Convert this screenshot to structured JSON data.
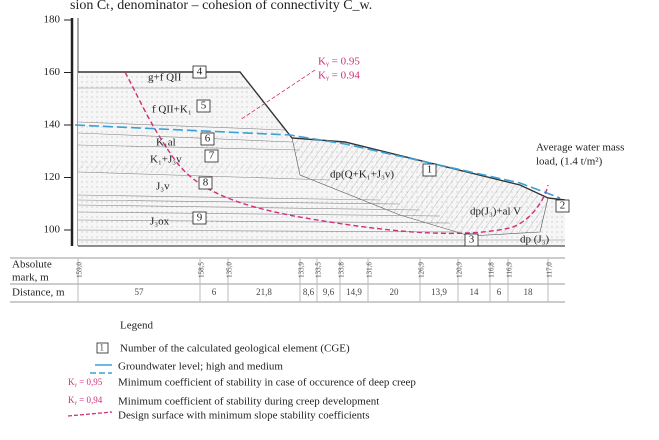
{
  "header": {
    "caption": "sion Cₜ, denominator – cohesion of connectivity C_w."
  },
  "axis": {
    "ticks": [
      "180",
      "160",
      "140",
      "120",
      "100"
    ]
  },
  "section": {
    "layers": [
      {
        "label": "g+f QII",
        "number": "4"
      },
      {
        "label": "f QII+K₁",
        "number": "5"
      },
      {
        "label": "K₁al",
        "number": "6"
      },
      {
        "label": "K₁+J₃v",
        "number": "7"
      },
      {
        "label": "J₃v",
        "number": "8"
      },
      {
        "label": "J₃ox",
        "number": "9"
      },
      {
        "label": "dp(Q+K₁+J₃v)",
        "number": "1"
      },
      {
        "label": "dp(J₃)+al V",
        "number": "2"
      },
      {
        "label": "dp (J₃)",
        "number": "3"
      }
    ],
    "stability_deep": "Kᵧ = 0.95",
    "stability_development": "Kᵧ = 0.94",
    "load_line1": "Average water mass",
    "load_line2": "load, (1.4 t/m²)"
  },
  "table": {
    "mark_label_line1": "Absolute",
    "mark_label_line2": "mark, m",
    "distance_label": "Distance, m",
    "marks": [
      "159,0",
      "158,5",
      "135,0",
      "133,9",
      "133,5",
      "133,8",
      "131,6",
      "126,9",
      "120,9",
      "116,8",
      "116,9",
      "117,0"
    ],
    "distances": [
      "57",
      "6",
      "21,8",
      "8,6",
      "9,6",
      "14,9",
      "20",
      "13,9",
      "14",
      "6",
      "18"
    ]
  },
  "legend": {
    "title": "Legend",
    "sample_number": "1",
    "ky_sample_1": "Kᵧ = 0,95",
    "ky_sample_2": "Kᵧ = 0,94",
    "items": [
      "Number of the calculated geological element (CGE)",
      "Groundwater level; high and medium",
      "Minimum coefficient of stability in case of occurence of deep creep",
      "Minimum coefficient of stability during creep development",
      "Design surface with minimum slope stability coefficients"
    ]
  }
}
